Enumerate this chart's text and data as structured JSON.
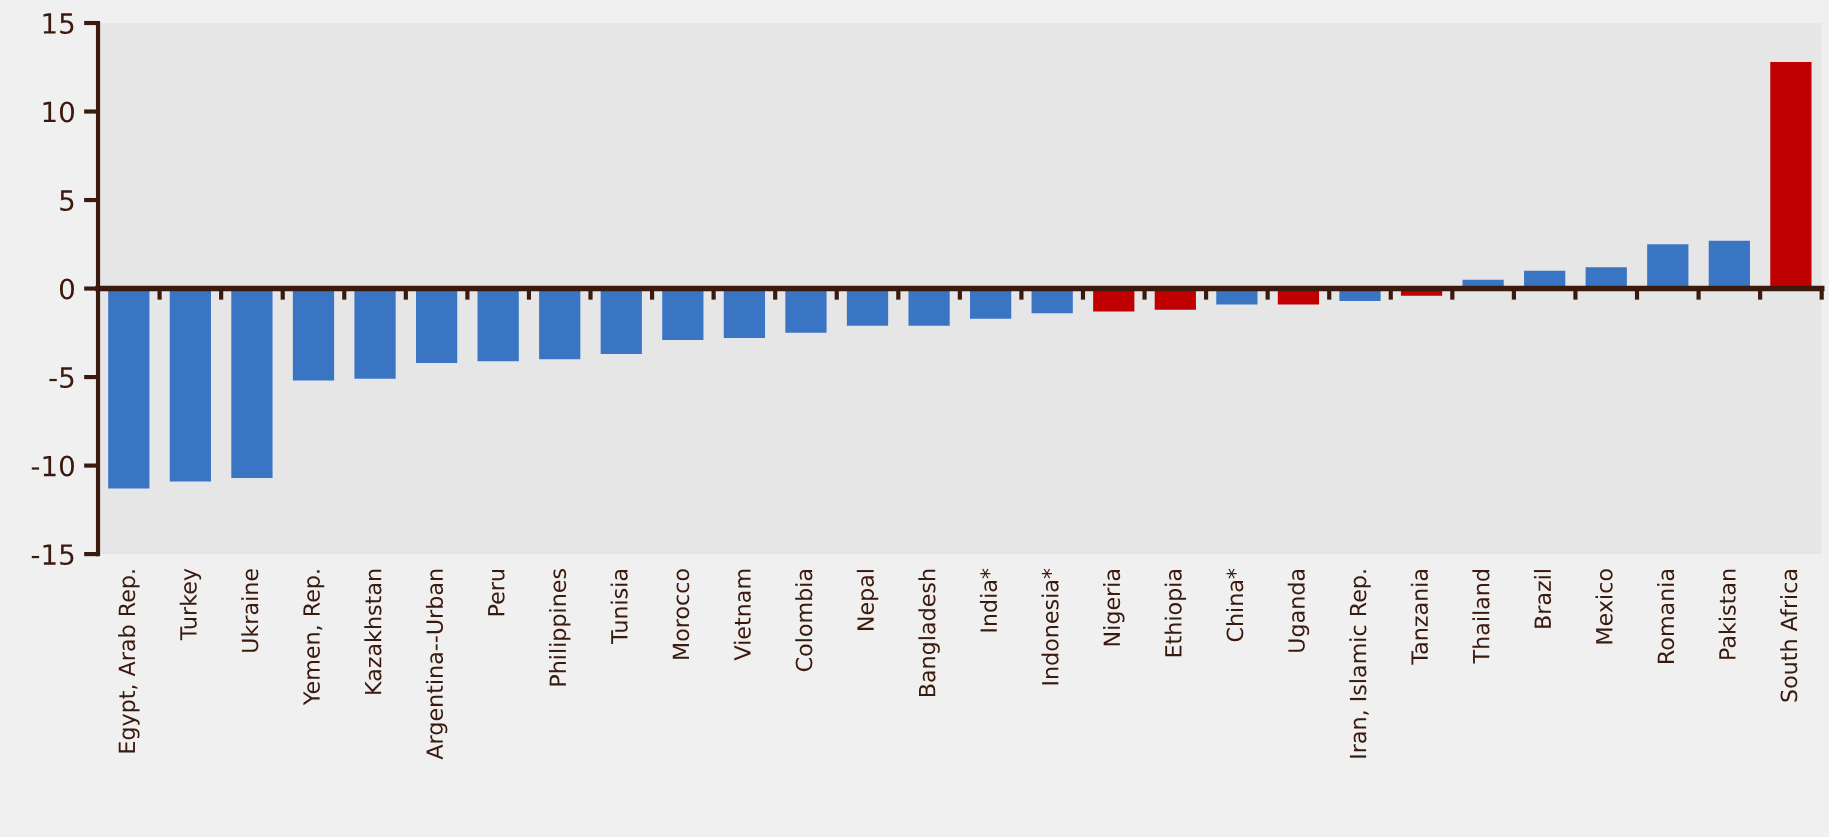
{
  "chart_data": {
    "type": "bar",
    "categories": [
      "Egypt, Arab Rep.",
      "Turkey",
      "Ukraine",
      "Yemen, Rep.",
      "Kazakhstan",
      "Argentina--Urban",
      "Peru",
      "Philippines",
      "Tunisia",
      "Morocco",
      "Vietnam",
      "Colombia",
      "Nepal",
      "Bangladesh",
      "India*",
      "Indonesia*",
      "Nigeria",
      "Ethiopia",
      "China*",
      "Uganda",
      "Iran, Islamic Rep.",
      "Tanzania",
      "Thailand",
      "Brazil",
      "Mexico",
      "Romania",
      "Pakistan",
      "South Africa"
    ],
    "values": [
      -11.3,
      -10.9,
      -10.7,
      -5.2,
      -5.1,
      -4.2,
      -4.1,
      -4.0,
      -3.7,
      -2.9,
      -2.8,
      -2.5,
      -2.1,
      -2.1,
      -1.7,
      -1.4,
      -1.3,
      -1.2,
      -0.9,
      -0.9,
      -0.7,
      -0.4,
      0.5,
      1.0,
      1.2,
      2.5,
      2.7,
      12.8
    ],
    "colors": [
      "#3a75c4",
      "#3a75c4",
      "#3a75c4",
      "#3a75c4",
      "#3a75c4",
      "#3a75c4",
      "#3a75c4",
      "#3a75c4",
      "#3a75c4",
      "#3a75c4",
      "#3a75c4",
      "#3a75c4",
      "#3a75c4",
      "#3a75c4",
      "#3a75c4",
      "#3a75c4",
      "#c00000",
      "#c00000",
      "#3a75c4",
      "#c00000",
      "#3a75c4",
      "#c00000",
      "#3a75c4",
      "#3a75c4",
      "#3a75c4",
      "#3a75c4",
      "#3a75c4",
      "#c00000"
    ],
    "ylim": [
      -15,
      15
    ],
    "yticks": [
      -15,
      -10,
      -5,
      0,
      5,
      10,
      15
    ]
  }
}
